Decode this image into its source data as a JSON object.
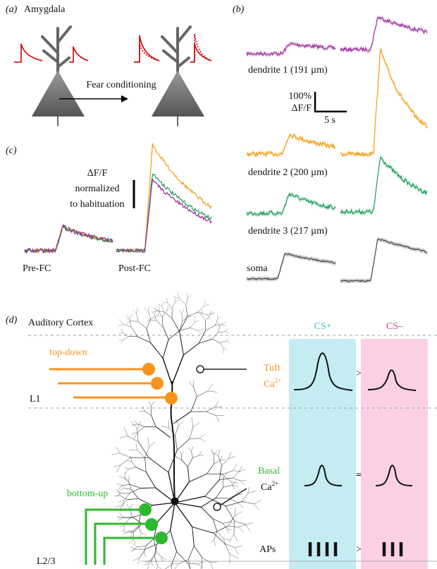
{
  "panel_a": {
    "label": "(a)",
    "title": "Amygdala",
    "arrow_label": "Fear conditioning"
  },
  "panel_b": {
    "label": "(b)",
    "traces": [
      "dendrite 1 (191 µm)",
      "dendrite 2 (200 µm)",
      "dendrite 3 (217 µm)",
      "soma"
    ],
    "scale_y_top": "100%",
    "scale_y_bottom": "ΔF/F",
    "scale_x": "5 s"
  },
  "panel_c": {
    "label": "(c)",
    "scale_lines": [
      "ΔF/F",
      "normalized",
      "to habituation"
    ],
    "conditions": [
      "Pre-FC",
      "Post-FC"
    ]
  },
  "panel_d": {
    "label": "(d)",
    "title": "Auditory Cortex",
    "cs_plus": "CS+",
    "cs_minus": "CS–",
    "top_down": "top-down",
    "bottom_up": "bottom-up",
    "layer_1": "L1",
    "layer_23": "L2/3",
    "tuft": {
      "name": "Tuft",
      "ion": "Ca",
      "charge": "2+"
    },
    "basal": {
      "name": "Basal",
      "ion": "Ca",
      "charge": "2+"
    },
    "aps": "APs",
    "comparisons": [
      ">",
      "=",
      ">"
    ]
  }
}
